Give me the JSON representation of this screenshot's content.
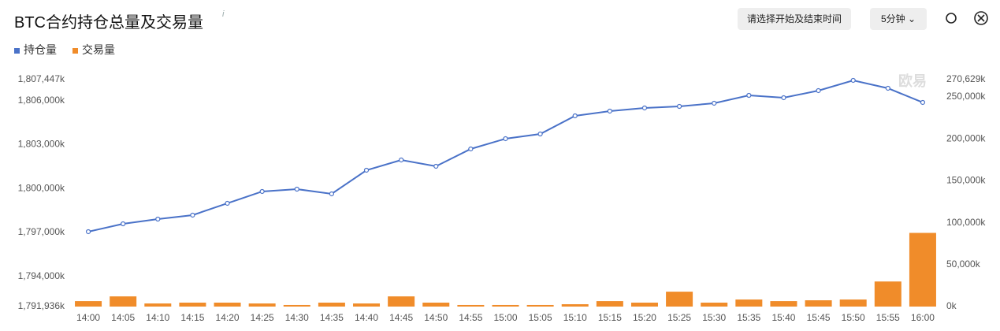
{
  "header": {
    "title": "BTC合约持仓总量及交易量",
    "info": "i",
    "time_button": "请选择开始及结束时间",
    "interval": "5分钟"
  },
  "chart_data": {
    "type": "line_bar",
    "watermark": "欧易",
    "categories": [
      "14:00",
      "14:05",
      "14:10",
      "14:15",
      "14:20",
      "14:25",
      "14:30",
      "14:35",
      "14:40",
      "14:45",
      "14:50",
      "14:55",
      "15:00",
      "15:05",
      "15:10",
      "15:15",
      "15:20",
      "15:25",
      "15:30",
      "15:35",
      "15:40",
      "15:45",
      "15:50",
      "15:55",
      "16:00"
    ],
    "series": [
      {
        "name": "持仓量",
        "type": "line",
        "color": "#4a72c8",
        "axis": "y",
        "values": [
          1797053,
          1797591,
          1797914,
          1798184,
          1798992,
          1799800,
          1799961,
          1799638,
          1801254,
          1801954,
          1801523,
          1802708,
          1803408,
          1803731,
          1804970,
          1805293,
          1805509,
          1805616,
          1805832,
          1806370,
          1806209,
          1806694,
          1807394,
          1806855,
          1805886
        ]
      },
      {
        "name": "交易量",
        "type": "bar",
        "color": "#f08c2a",
        "axis": "y2",
        "values": [
          6500,
          12150,
          3700,
          4700,
          4700,
          3700,
          1900,
          4700,
          3700,
          12150,
          4700,
          1900,
          1900,
          1900,
          2800,
          6500,
          4700,
          17750,
          4700,
          8400,
          6500,
          7500,
          8400,
          29900,
          87850
        ]
      }
    ],
    "ylim": [
      1791936,
      1807447
    ],
    "yticks": [
      {
        "value": 1791936,
        "label": "1,791,936k"
      },
      {
        "value": 1794000,
        "label": "1,794,000k"
      },
      {
        "value": 1797000,
        "label": "1,797,000k"
      },
      {
        "value": 1800000,
        "label": "1,800,000k"
      },
      {
        "value": 1803000,
        "label": "1,803,000k"
      },
      {
        "value": 1806000,
        "label": "1,806,000k"
      },
      {
        "value": 1807447,
        "label": "1,807,447k"
      }
    ],
    "y2lim": [
      0,
      270629
    ],
    "y2ticks": [
      {
        "value": 0,
        "label": "0k"
      },
      {
        "value": 50000,
        "label": "50,000k"
      },
      {
        "value": 100000,
        "label": "100,000k"
      },
      {
        "value": 150000,
        "label": "150,000k"
      },
      {
        "value": 200000,
        "label": "200,000k"
      },
      {
        "value": 250000,
        "label": "250,000k"
      },
      {
        "value": 270629,
        "label": "270,629k"
      }
    ]
  }
}
